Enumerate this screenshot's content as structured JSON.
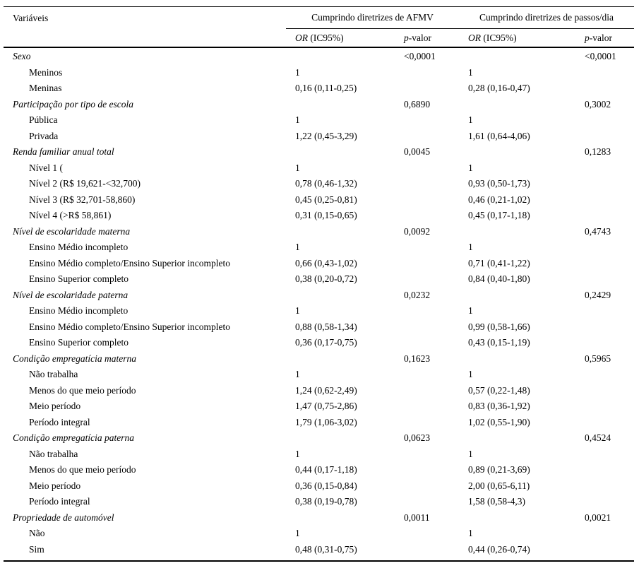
{
  "page": {
    "background": "#ffffff",
    "text_color": "#000000"
  },
  "table": {
    "variables_header": "Variáveis",
    "groups": [
      {
        "label": "Cumprindo diretrizes de AFMV"
      },
      {
        "label": "Cumprindo diretrizes de passos/dia"
      }
    ],
    "subheader": {
      "or": "OR",
      "ci": "(IC95%)",
      "p": "p",
      "valor": "-valor"
    },
    "rows": [
      {
        "type": "section",
        "label": "Sexo",
        "or1": "",
        "p1": "<0,0001",
        "or2": "",
        "p2": "<0,0001"
      },
      {
        "type": "item",
        "label": "Meninos",
        "or1": "1",
        "p1": "",
        "or2": "1",
        "p2": ""
      },
      {
        "type": "item",
        "label": "Meninas",
        "or1": "0,16 (0,11-0,25)",
        "p1": "",
        "or2": "0,28 (0,16-0,47)",
        "p2": ""
      },
      {
        "type": "section",
        "label": "Participação por tipo de escola",
        "or1": "",
        "p1": "0,6890",
        "or2": "",
        "p2": "0,3002"
      },
      {
        "type": "item",
        "label": "Pública",
        "or1": "1",
        "p1": "",
        "or2": "1",
        "p2": ""
      },
      {
        "type": "item",
        "label": "Privada",
        "or1": "1,22 (0,45-3,29)",
        "p1": "",
        "or2": "1,61 (0,64-4,06)",
        "p2": ""
      },
      {
        "type": "section",
        "label": "Renda familiar anual total",
        "or1": "",
        "p1": "0,0045",
        "or2": "",
        "p2": "0,1283"
      },
      {
        "type": "item",
        "label": "Nível 1 (",
        "or1": "1",
        "p1": "",
        "or2": "1",
        "p2": ""
      },
      {
        "type": "item",
        "label": "Nível 2 (R$ 19,621-<32,700)",
        "or1": "0,78 (0,46-1,32)",
        "p1": "",
        "or2": "0,93 (0,50-1,73)",
        "p2": ""
      },
      {
        "type": "item",
        "label": "Nível 3 (R$ 32,701-58,860)",
        "or1": "0,45 (0,25-0,81)",
        "p1": "",
        "or2": "0,46 (0,21-1,02)",
        "p2": ""
      },
      {
        "type": "item",
        "label": "Nível 4 (>R$ 58,861)",
        "or1": "0,31 (0,15-0,65)",
        "p1": "",
        "or2": "0,45 (0,17-1,18)",
        "p2": ""
      },
      {
        "type": "section",
        "label": "Nível de escolaridade materna",
        "or1": "",
        "p1": "0,0092",
        "or2": "",
        "p2": "0,4743"
      },
      {
        "type": "item",
        "label": "Ensino Médio incompleto",
        "or1": "1",
        "p1": "",
        "or2": "1",
        "p2": ""
      },
      {
        "type": "item",
        "label": "Ensino Médio completo/Ensino Superior incompleto",
        "or1": "0,66 (0,43-1,02)",
        "p1": "",
        "or2": "0,71 (0,41-1,22)",
        "p2": ""
      },
      {
        "type": "item",
        "label": "Ensino Superior completo",
        "or1": "0,38 (0,20-0,72)",
        "p1": "",
        "or2": "0,84 (0,40-1,80)",
        "p2": ""
      },
      {
        "type": "section",
        "label": "Nível de escolaridade paterna",
        "or1": "",
        "p1": "0,0232",
        "or2": "",
        "p2": "0,2429"
      },
      {
        "type": "item",
        "label": "Ensino Médio incompleto",
        "or1": "1",
        "p1": "",
        "or2": "1",
        "p2": ""
      },
      {
        "type": "item",
        "label": "Ensino Médio completo/Ensino Superior incompleto",
        "or1": "0,88 (0,58-1,34)",
        "p1": "",
        "or2": "0,99 (0,58-1,66)",
        "p2": ""
      },
      {
        "type": "item",
        "label": "Ensino Superior completo",
        "or1": "0,36 (0,17-0,75)",
        "p1": "",
        "or2": "0,43 (0,15-1,19)",
        "p2": ""
      },
      {
        "type": "section",
        "label": "Condição empregatícia materna",
        "or1": "",
        "p1": "0,1623",
        "or2": "",
        "p2": "0,5965"
      },
      {
        "type": "item",
        "label": "Não trabalha",
        "or1": "1",
        "p1": "",
        "or2": "1",
        "p2": ""
      },
      {
        "type": "item",
        "label": "Menos do que meio período",
        "or1": "1,24 (0,62-2,49)",
        "p1": "",
        "or2": "0,57 (0,22-1,48)",
        "p2": ""
      },
      {
        "type": "item",
        "label": "Meio período",
        "or1": "1,47 (0,75-2,86)",
        "p1": "",
        "or2": "0,83 (0,36-1,92)",
        "p2": ""
      },
      {
        "type": "item",
        "label": "Período integral",
        "or1": "1,79 (1,06-3,02)",
        "p1": "",
        "or2": "1,02 (0,55-1,90)",
        "p2": ""
      },
      {
        "type": "section",
        "label": "Condição empregatícia paterna",
        "or1": "",
        "p1": "0,0623",
        "or2": "",
        "p2": "0,4524"
      },
      {
        "type": "item",
        "label": "Não trabalha",
        "or1": "1",
        "p1": "",
        "or2": "1",
        "p2": ""
      },
      {
        "type": "item",
        "label": "Menos do que meio período",
        "or1": "0,44 (0,17-1,18)",
        "p1": "",
        "or2": "0,89 (0,21-3,69)",
        "p2": ""
      },
      {
        "type": "item",
        "label": "Meio período",
        "or1": "0,36 (0,15-0,84)",
        "p1": "",
        "or2": "2,00 (0,65-6,11)",
        "p2": ""
      },
      {
        "type": "item",
        "label": "Período integral",
        "or1": "0,38 (0,19-0,78)",
        "p1": "",
        "or2": "1,58 (0,58-4,3)",
        "p2": ""
      },
      {
        "type": "section",
        "label": "Propriedade de automóvel",
        "or1": "",
        "p1": "0,0011",
        "or2": "",
        "p2": "0,0021"
      },
      {
        "type": "item",
        "label": "Não",
        "or1": "1",
        "p1": "",
        "or2": "1",
        "p2": ""
      },
      {
        "type": "item",
        "label": "Sim",
        "or1": "0,48 (0,31-0,75)",
        "p1": "",
        "or2": "0,44 (0,26-0,74)",
        "p2": ""
      }
    ]
  }
}
